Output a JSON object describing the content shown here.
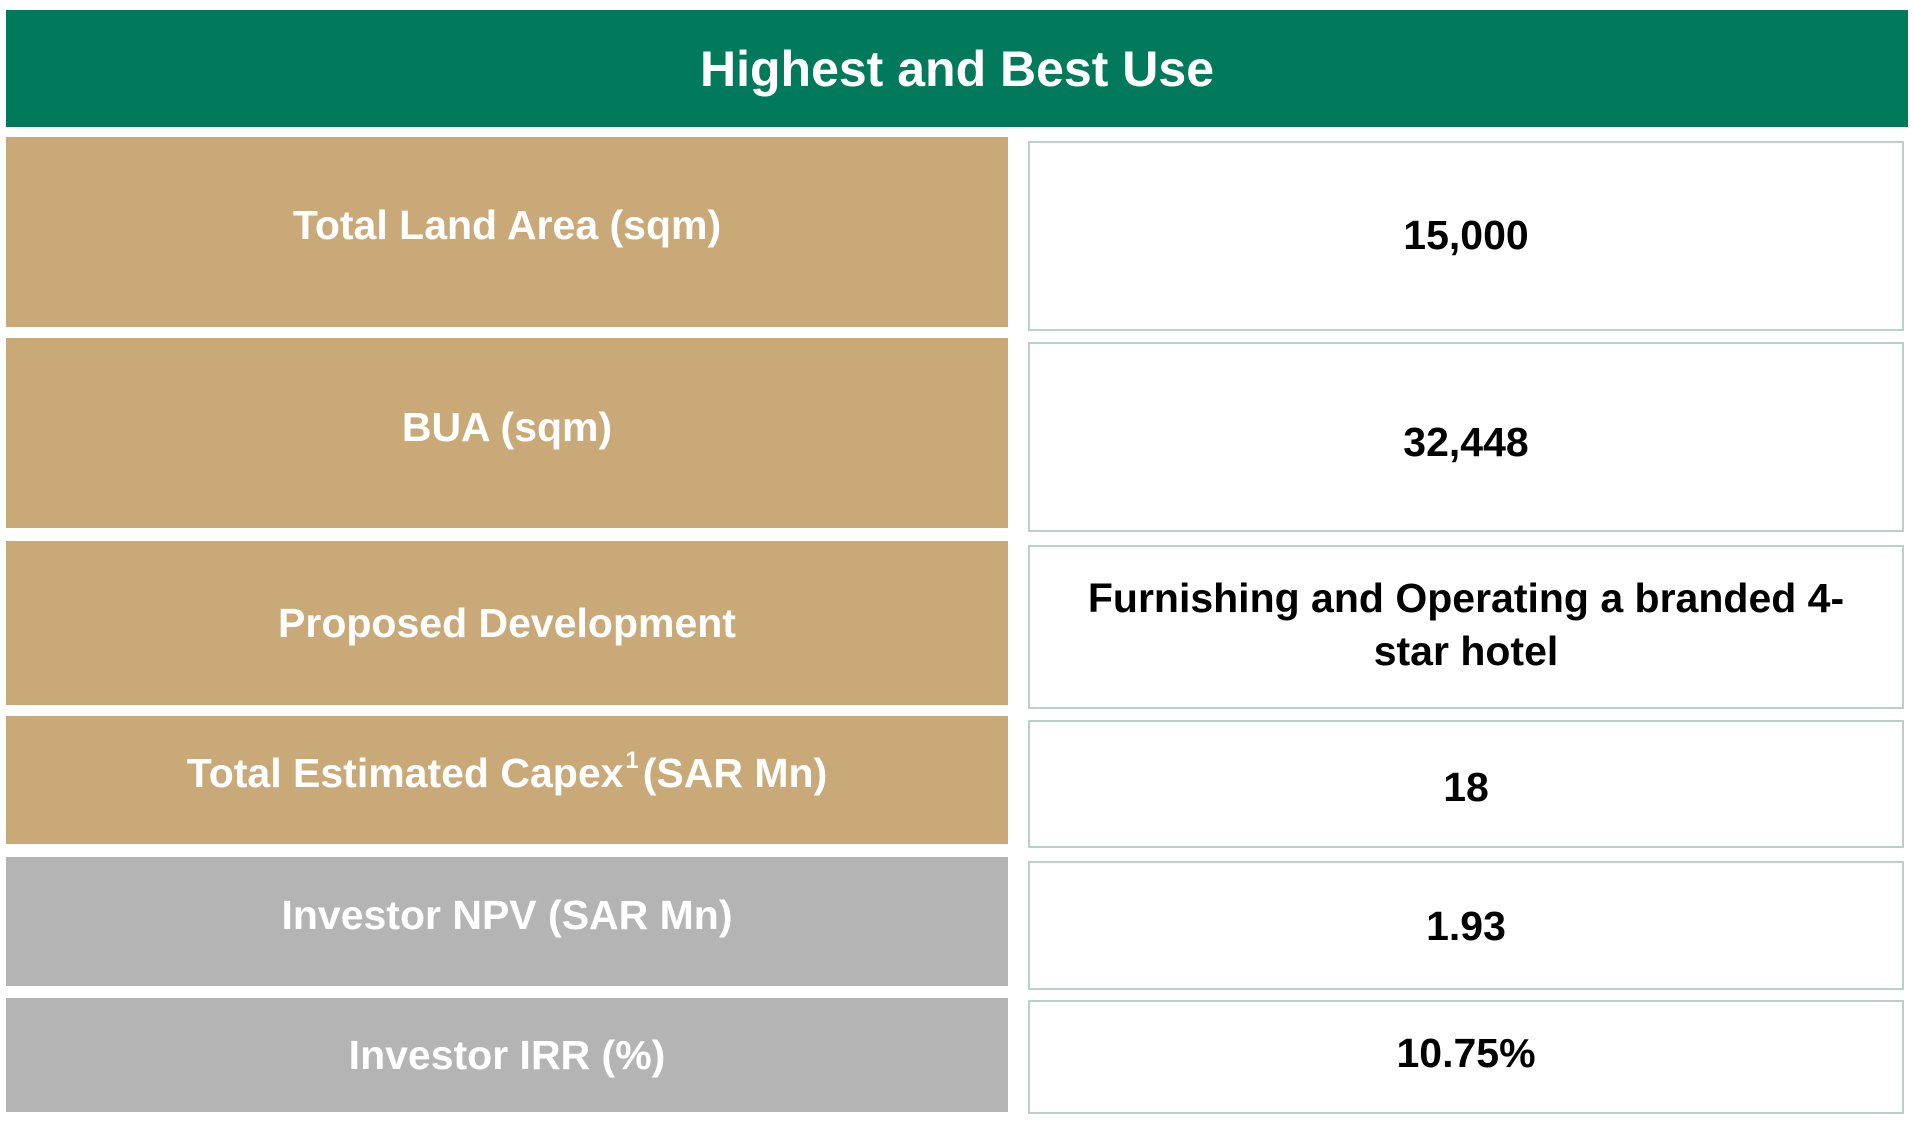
{
  "header": {
    "title": "Highest and Best Use"
  },
  "rows": [
    {
      "label": "Total Land Area (sqm)",
      "value": "15,000"
    },
    {
      "label": "BUA (sqm)",
      "value": "32,448"
    },
    {
      "label": "Proposed Development",
      "value": "Furnishing and Operating a branded 4-star hotel"
    },
    {
      "label_pre": "Total Estimated Capex",
      "label_sup": "1",
      "label_post": "(SAR Mn)",
      "value": "18"
    },
    {
      "label": "Investor NPV (SAR Mn)",
      "value": "1.93"
    },
    {
      "label": "Investor IRR (%)",
      "value": "10.75%"
    }
  ],
  "colors": {
    "header_bg": "#017a5c",
    "label_tan": "#c9a978",
    "label_gray": "#b4b4b4",
    "value_border": "#b8d2c9"
  }
}
